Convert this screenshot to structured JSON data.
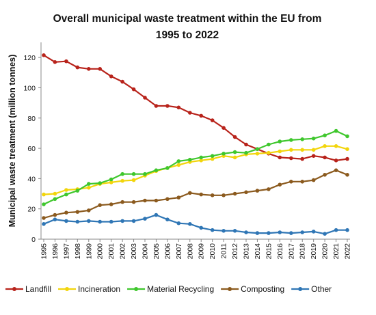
{
  "chart_data": {
    "type": "line",
    "title_line1": "Overall municipal  waste treatment within the EU from",
    "title_line2": "1995 to 2022",
    "xlabel": "",
    "ylabel": "Municipal waste treatment (million tonnes)",
    "ylim": [
      0,
      130
    ],
    "yticks": [
      0,
      20,
      40,
      60,
      80,
      100,
      120
    ],
    "grid": false,
    "legend_position": "bottom",
    "x": [
      "1995",
      "1996",
      "1997",
      "1998",
      "1999",
      "2000",
      "2001",
      "2002",
      "2003",
      "2004",
      "2005",
      "2006",
      "2007",
      "2008",
      "2009",
      "2010",
      "2011",
      "2012",
      "2013",
      "2014",
      "2015",
      "2016",
      "2017",
      "2018",
      "2019",
      "2020",
      "2021",
      "2022"
    ],
    "series": [
      {
        "name": "Landfill",
        "color": "#b8231b",
        "values": [
          121.5,
          117,
          117.5,
          113.5,
          112.5,
          112.5,
          107.5,
          104,
          99,
          93.5,
          88,
          88,
          87,
          83.5,
          81.5,
          78.5,
          73.5,
          67.5,
          62.5,
          59.5,
          56.5,
          54,
          53.5,
          53,
          55,
          54,
          52,
          53
        ]
      },
      {
        "name": "Incineration",
        "color": "#f2d50c",
        "values": [
          29.5,
          30,
          32.5,
          33,
          34,
          36.5,
          37.5,
          38.5,
          39,
          42,
          45,
          47,
          49,
          51,
          52,
          53,
          55,
          54,
          56,
          56.5,
          57,
          58,
          59,
          59,
          59,
          61.5,
          61.5,
          59.5
        ]
      },
      {
        "name": "Material Recycling",
        "color": "#3fc72d",
        "values": [
          23,
          26.5,
          29.5,
          32,
          36.5,
          37,
          39.5,
          43,
          43,
          43,
          45.5,
          47,
          51.5,
          52.5,
          54,
          55,
          56.5,
          57.5,
          57,
          59.5,
          62.5,
          64.5,
          65.5,
          66,
          66.5,
          68.5,
          71.5,
          68
        ]
      },
      {
        "name": "Composting",
        "color": "#8b5a1e",
        "values": [
          14,
          16,
          17.5,
          18,
          19,
          22.5,
          23,
          24.5,
          24.5,
          25.5,
          25.5,
          26.5,
          27.5,
          30.5,
          29.5,
          29,
          29,
          30,
          31,
          32,
          33,
          36,
          38,
          38,
          39,
          42.5,
          45.5,
          42.5
        ]
      },
      {
        "name": "Other",
        "color": "#2f76b5",
        "values": [
          10,
          13,
          12,
          11.5,
          12,
          11.5,
          11.5,
          12,
          12,
          13.5,
          16,
          13,
          10.5,
          10,
          7.5,
          6,
          5.5,
          5.5,
          4.5,
          4,
          4,
          4.5,
          4,
          4.5,
          5,
          3.5,
          6,
          6
        ]
      }
    ]
  }
}
